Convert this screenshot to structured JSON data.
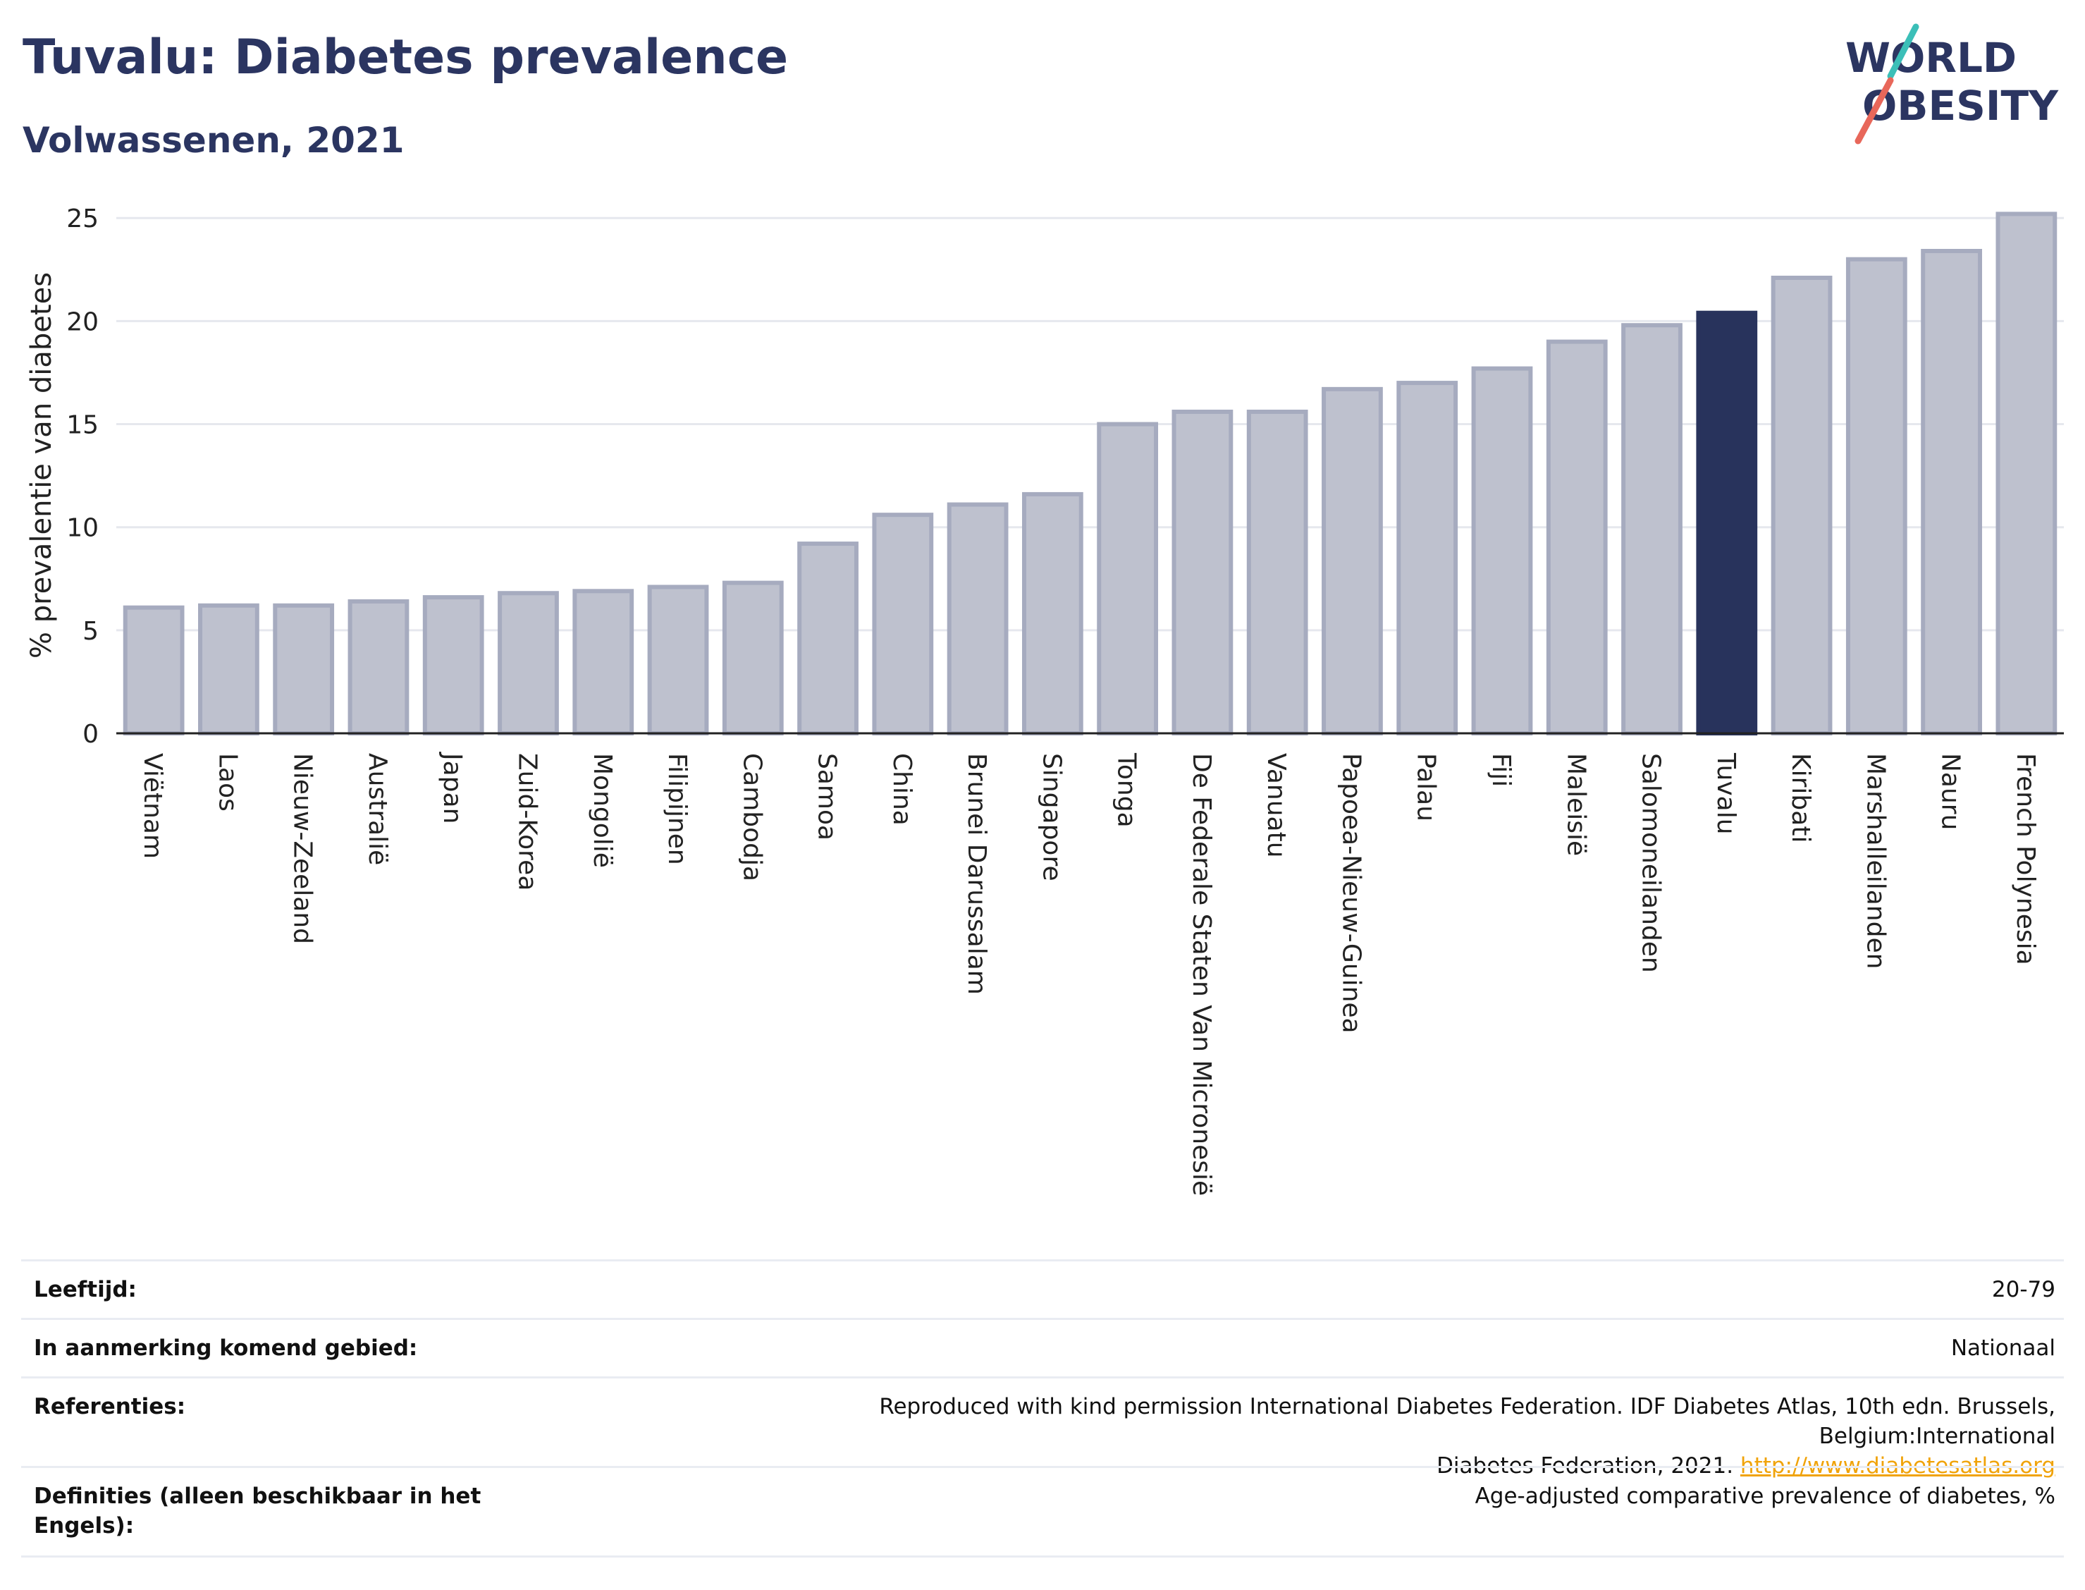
{
  "header": {
    "title": "Tuvalu: Diabetes prevalence",
    "subtitle": "Volwassenen, 2021"
  },
  "logo": {
    "line1": "WORLD",
    "line2": "OBESITY"
  },
  "chart_data": {
    "type": "bar",
    "ylabel": "% prevalentie van diabetes",
    "ylim": [
      0,
      26
    ],
    "yticks": [
      0,
      5,
      10,
      15,
      20,
      25
    ],
    "grid": true,
    "highlight": "Tuvalu",
    "colors": {
      "bar": "#bec1ce",
      "bar_edge": "#a6abbf",
      "highlight": "#28335c",
      "axis": "#222222",
      "grid": "#e6e8ee"
    },
    "categories": [
      "Viëtnam",
      "Laos",
      "Nieuw-Zeeland",
      "Australië",
      "Japan",
      "Zuid-Korea",
      "Mongolië",
      "Filipijnen",
      "Cambodja",
      "Samoa",
      "China",
      "Brunei Darussalam",
      "Singapore",
      "Tonga",
      "De Federale Staten Van Micronesië",
      "Vanuatu",
      "Papoea-Nieuw-Guinea",
      "Palau",
      "Fiji",
      "Maleisië",
      "Salomoneilanden",
      "Tuvalu",
      "Kiribati",
      "Marshalleilanden",
      "Nauru",
      "French Polynesia"
    ],
    "values": [
      6.1,
      6.2,
      6.2,
      6.4,
      6.6,
      6.8,
      6.9,
      7.1,
      7.3,
      9.2,
      10.6,
      11.1,
      11.6,
      15.0,
      15.6,
      15.6,
      16.7,
      17.0,
      17.7,
      19.0,
      19.8,
      20.4,
      22.1,
      23.0,
      23.4,
      25.2
    ]
  },
  "meta": {
    "age_label": "Leeftijd:",
    "age_value": "20-79",
    "area_label": "In aanmerking komend gebied:",
    "area_value": "Nationaal",
    "ref_label": "Referenties:",
    "ref_text_1": "Reproduced with kind permission International Diabetes Federation.  IDF Diabetes Atlas, 10th edn. Brussels, Belgium:International",
    "ref_text_2": "Diabetes Federation, 2021.",
    "ref_link": "http://www.diabetesatlas.org",
    "def_label_1": "Definities (alleen beschikbaar in het",
    "def_label_2": "Engels):",
    "def_value": "Age-adjusted comparative prevalence of diabetes, %"
  }
}
